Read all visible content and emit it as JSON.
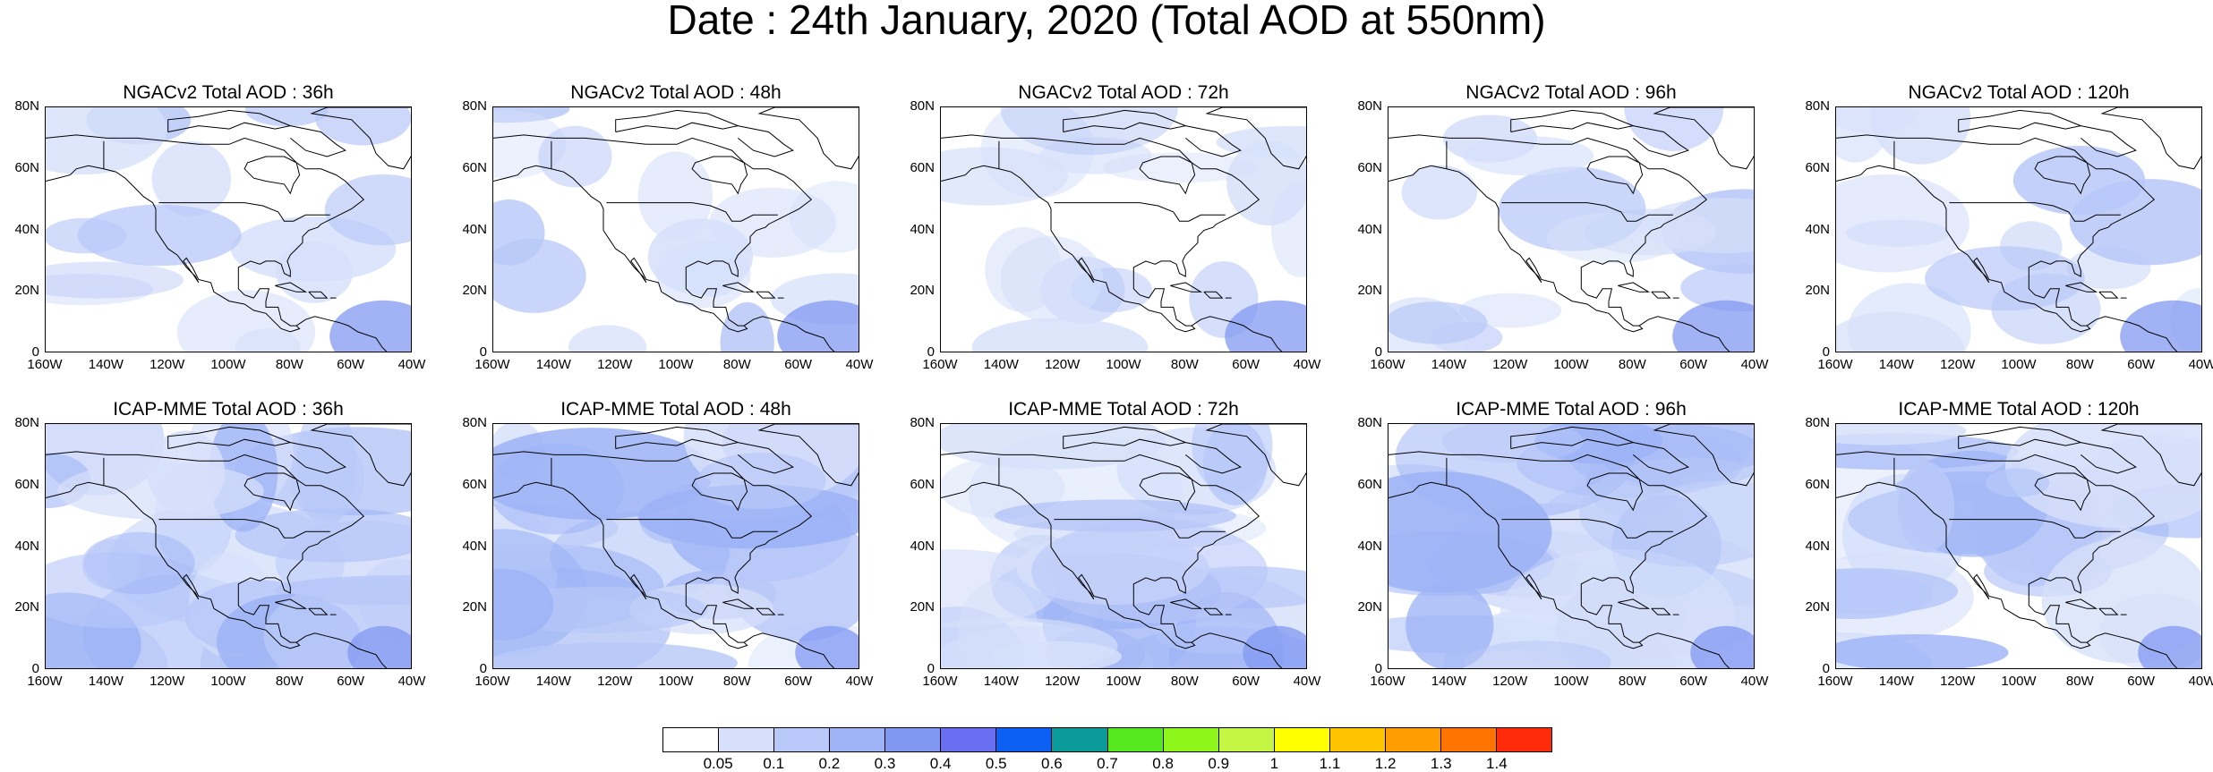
{
  "title": "Date : 24th January, 2020 (Total AOD at 550nm)",
  "panels": [
    {
      "title": "NGACv2 Total AOD : 36h"
    },
    {
      "title": "NGACv2 Total AOD : 48h"
    },
    {
      "title": "NGACv2 Total AOD : 72h"
    },
    {
      "title": "NGACv2 Total AOD : 96h"
    },
    {
      "title": "NGACv2 Total AOD : 120h"
    },
    {
      "title": "ICAP-MME Total AOD : 36h"
    },
    {
      "title": "ICAP-MME Total AOD : 48h"
    },
    {
      "title": "ICAP-MME Total AOD : 72h"
    },
    {
      "title": "ICAP-MME Total AOD : 96h"
    },
    {
      "title": "ICAP-MME Total AOD : 120h"
    }
  ],
  "axes": {
    "lat_labels": [
      "80N",
      "60N",
      "40N",
      "20N",
      "0"
    ],
    "lon_labels": [
      "160W",
      "140W",
      "120W",
      "100W",
      "80W",
      "60W",
      "40W"
    ]
  },
  "colorbar": {
    "colors": [
      "#ffffff",
      "#d6e0fa",
      "#b8c8f8",
      "#9db3f6",
      "#8198f2",
      "#6a6ef0",
      "#0d5ef2",
      "#0b9a9a",
      "#55e81f",
      "#8ef51a",
      "#c3f542",
      "#ffff00",
      "#ffc400",
      "#ff9d00",
      "#ff7300",
      "#ff2a0a"
    ],
    "labels": [
      "0.05",
      "0.1",
      "0.2",
      "0.3",
      "0.4",
      "0.5",
      "0.6",
      "0.7",
      "0.8",
      "0.9",
      "1",
      "1.1",
      "1.2",
      "1.3",
      "1.4"
    ]
  }
}
